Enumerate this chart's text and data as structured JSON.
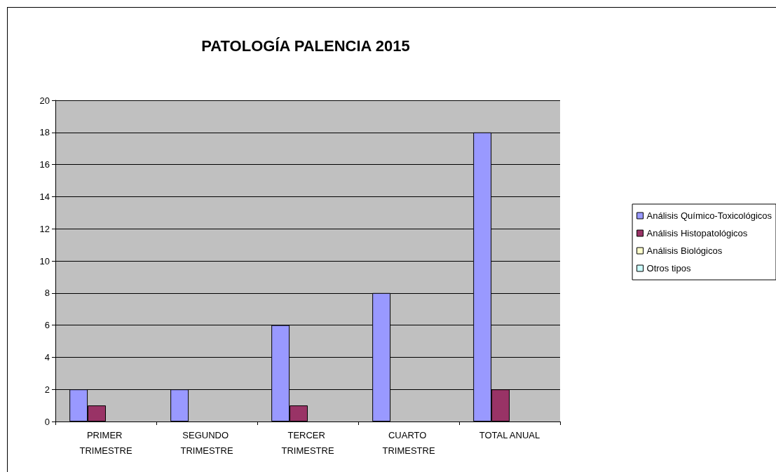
{
  "chart_data": {
    "type": "bar",
    "title": "PATOLOGÍA PALENCIA 2015",
    "categories": [
      "PRIMER TRIMESTRE",
      "SEGUNDO TRIMESTRE",
      "TERCER TRIMESTRE",
      "CUARTO TRIMESTRE",
      "TOTAL ANUAL"
    ],
    "series": [
      {
        "name": "Análisis Químico-Toxicológicos",
        "color": "#9999ff",
        "values": [
          2,
          2,
          6,
          8,
          18
        ]
      },
      {
        "name": "Análisis Histopatológicos",
        "color": "#993366",
        "values": [
          1,
          0,
          1,
          0,
          2
        ]
      },
      {
        "name": "Análisis Biológicos",
        "color": "#ffffcc",
        "values": [
          0,
          0,
          0,
          0,
          0
        ]
      },
      {
        "name": "Otros tipos",
        "color": "#ccffff",
        "values": [
          0,
          0,
          0,
          0,
          0
        ]
      }
    ],
    "ylim": [
      0,
      20
    ],
    "yticks": [
      0,
      2,
      4,
      6,
      8,
      10,
      12,
      14,
      16,
      18,
      20
    ],
    "grid": "y",
    "legend": "right"
  }
}
